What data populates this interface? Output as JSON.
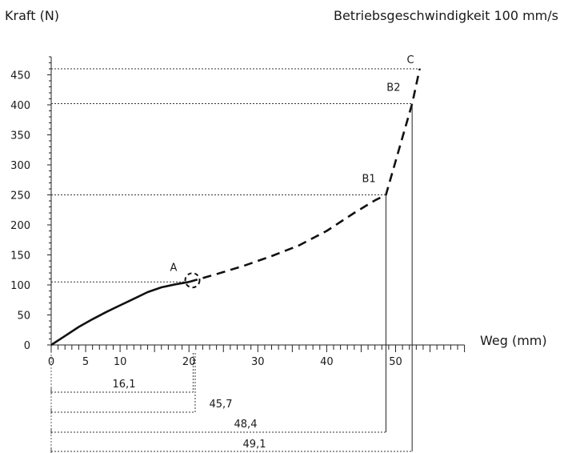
{
  "chart_data": {
    "type": "line",
    "title": "Betriebsgeschwindigkeit 100 mm/s",
    "xlabel": "Weg (mm)",
    "ylabel": "Kraft (N)",
    "xlim": [
      0,
      60
    ],
    "ylim": [
      0,
      480
    ],
    "x_ticks": [
      0,
      5,
      10,
      20,
      30,
      40,
      50
    ],
    "y_ticks": [
      0,
      50,
      100,
      150,
      200,
      250,
      300,
      350,
      400,
      450
    ],
    "grid": false,
    "series": [
      {
        "style": "solid",
        "points": [
          [
            0,
            0
          ],
          [
            2,
            15
          ],
          [
            4,
            30
          ],
          [
            6,
            43
          ],
          [
            8,
            55
          ],
          [
            10,
            66
          ],
          [
            12,
            77
          ],
          [
            14,
            88
          ],
          [
            16,
            96
          ],
          [
            18,
            101
          ],
          [
            20,
            105
          ]
        ]
      },
      {
        "style": "dashed",
        "points": [
          [
            20,
            105
          ],
          [
            24,
            118
          ],
          [
            28,
            132
          ],
          [
            32,
            148
          ],
          [
            36,
            166
          ],
          [
            40,
            190
          ],
          [
            44,
            220
          ],
          [
            47,
            241
          ],
          [
            48.6,
            250
          ],
          [
            52.4,
            402
          ],
          [
            53.5,
            460
          ]
        ]
      }
    ],
    "points": [
      {
        "label": "A",
        "x": 20.5,
        "y": 105
      },
      {
        "label": "B1",
        "x": 48.6,
        "y": 250
      },
      {
        "label": "B2",
        "x": 52.3,
        "y": 402
      },
      {
        "label": "C",
        "x": 53.6,
        "y": 460
      }
    ],
    "measurements": [
      {
        "label": "16,1",
        "value": 20.6
      },
      {
        "label": "45,7",
        "value": 20.9
      },
      {
        "label": "48,4",
        "value": 48.6
      },
      {
        "label": "49,1",
        "value": 52.4
      }
    ]
  }
}
